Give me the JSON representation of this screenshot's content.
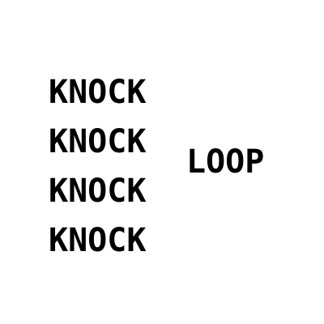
{
  "knock_words": [
    "KNOCK",
    "KNOCK",
    "KNOCK",
    "KNOCK"
  ],
  "loop_word": "LOOP",
  "colors": {
    "background": "#ffffff",
    "text": "#000000"
  }
}
